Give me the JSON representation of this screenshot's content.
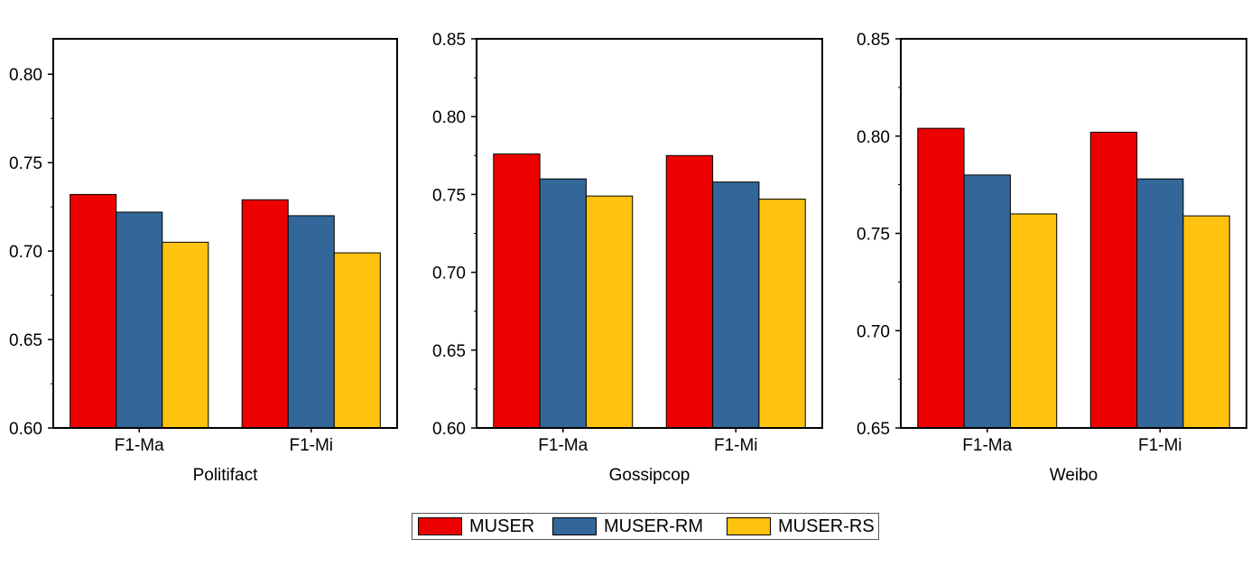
{
  "colors": {
    "MUSER": "#ee0000",
    "MUSER-RM": "#336699",
    "MUSER-RS": "#ffc20e",
    "axis": "#000000",
    "bar_outline": "#000000"
  },
  "legend": {
    "placement": "bottom-center",
    "items": [
      {
        "label": "MUSER",
        "color": "#ee0000"
      },
      {
        "label": "MUSER-RM",
        "color": "#336699"
      },
      {
        "label": "MUSER-RS",
        "color": "#ffc20e"
      }
    ]
  },
  "chart_data": [
    {
      "type": "bar",
      "title": "",
      "xlabel": "Politifact",
      "ylabel": "",
      "categories": [
        "F1-Ma",
        "F1-Mi"
      ],
      "ylim": [
        0.6,
        0.82
      ],
      "yticks": [
        0.6,
        0.65,
        0.7,
        0.75,
        0.8
      ],
      "ytick_labels": [
        "0.60",
        "0.65",
        "0.70",
        "0.75",
        "0.80"
      ],
      "grid": false,
      "series": [
        {
          "name": "MUSER",
          "values": [
            0.732,
            0.729
          ]
        },
        {
          "name": "MUSER-RM",
          "values": [
            0.722,
            0.72
          ]
        },
        {
          "name": "MUSER-RS",
          "values": [
            0.705,
            0.699
          ]
        }
      ]
    },
    {
      "type": "bar",
      "title": "",
      "xlabel": "Gossipcop",
      "ylabel": "",
      "categories": [
        "F1-Ma",
        "F1-Mi"
      ],
      "ylim": [
        0.6,
        0.85
      ],
      "yticks": [
        0.6,
        0.65,
        0.7,
        0.75,
        0.8,
        0.85
      ],
      "ytick_labels": [
        "0.60",
        "0.65",
        "0.70",
        "0.75",
        "0.80",
        "0.85"
      ],
      "grid": false,
      "series": [
        {
          "name": "MUSER",
          "values": [
            0.776,
            0.775
          ]
        },
        {
          "name": "MUSER-RM",
          "values": [
            0.76,
            0.758
          ]
        },
        {
          "name": "MUSER-RS",
          "values": [
            0.749,
            0.747
          ]
        }
      ]
    },
    {
      "type": "bar",
      "title": "",
      "xlabel": "Weibo",
      "ylabel": "",
      "categories": [
        "F1-Ma",
        "F1-Mi"
      ],
      "ylim": [
        0.65,
        0.85
      ],
      "yticks": [
        0.65,
        0.7,
        0.75,
        0.8,
        0.85
      ],
      "ytick_labels": [
        "0.65",
        "0.70",
        "0.75",
        "0.80",
        "0.85"
      ],
      "grid": false,
      "series": [
        {
          "name": "MUSER",
          "values": [
            0.804,
            0.802
          ]
        },
        {
          "name": "MUSER-RM",
          "values": [
            0.78,
            0.778
          ]
        },
        {
          "name": "MUSER-RS",
          "values": [
            0.76,
            0.759
          ]
        }
      ]
    }
  ]
}
